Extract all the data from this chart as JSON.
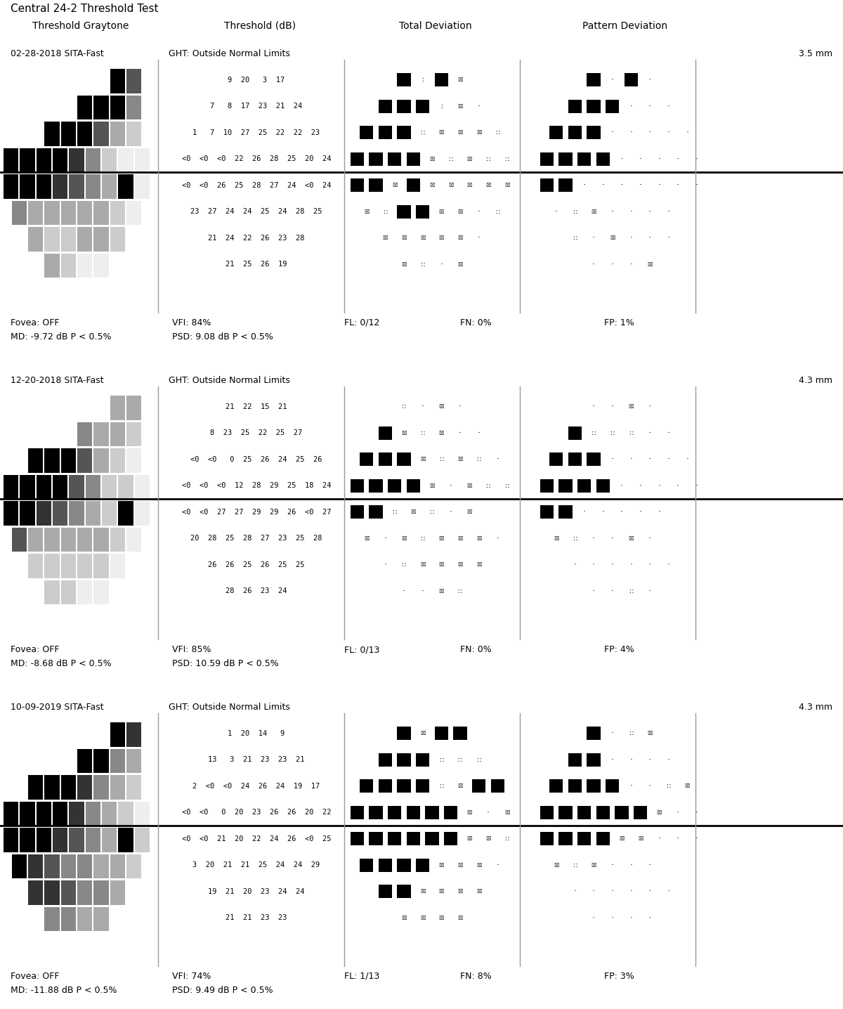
{
  "title": "Central 24-2 Threshold Test",
  "col_headers": [
    "Threshold Graytone",
    "Threshold (dB)",
    "Total Deviation",
    "Pattern Deviation"
  ],
  "panels": [
    {
      "date": "02-28-2018 SITA-Fast",
      "ght": "GHT: Outside Normal Limits",
      "mm": "3.5 mm",
      "fovea": "Fovea: OFF",
      "vfi": "VFI: 84%",
      "fl": "FL: 0/12",
      "fn": "FN: 0%",
      "fp": "FP: 1%",
      "md": "MD: -9.72 dB P < 0.5%",
      "psd": "PSD: 9.08 dB P < 0.5%",
      "threshold_rows_upper": [
        "9  20   3  17",
        "7   8  17  23  21  24",
        "1   7  10  27  25  22  22  23",
        "<0  <0  <0  22  26  28  25  20  24"
      ],
      "threshold_rows_lower": [
        "<0  <0  26  25  28  27  24  <0  24",
        "23  27  24  24  25  24  28  25",
        "21  24  22  26  23  28",
        "21  25  26  19"
      ]
    },
    {
      "date": "12-20-2018 SITA-Fast",
      "ght": "GHT: Outside Normal Limits",
      "mm": "4.3 mm",
      "fovea": "Fovea: OFF",
      "vfi": "VFI: 85%",
      "fl": "FL: 0/13",
      "fn": "FN: 0%",
      "fp": "FP: 4%",
      "md": "MD: -8.68 dB P < 0.5%",
      "psd": "PSD: 10.59 dB P < 0.5%",
      "threshold_rows_upper": [
        "21  22  15  21",
        "8  23  25  22  25  27",
        "<0  <0   0  25  26  24  25  26",
        "<0  <0  <0  12  28  29  25  18  24"
      ],
      "threshold_rows_lower": [
        "<0  <0  27  27  29  29  26  <0  27",
        "20  28  25  28  27  23  25  28",
        "26  26  25  26  25  25",
        "28  26  23  24"
      ]
    },
    {
      "date": "10-09-2019 SITA-Fast",
      "ght": "GHT: Outside Normal Limits",
      "mm": "4.3 mm",
      "fovea": "Fovea: OFF",
      "vfi": "VFI: 74%",
      "fl": "FL: 1/13",
      "fn": "FN: 8%",
      "fp": "FP: 3%",
      "md": "MD: -11.88 dB P < 0.5%",
      "psd": "PSD: 9.49 dB P < 0.5%",
      "threshold_rows_upper": [
        "1  20  14   9",
        "13   3  21  23  23  21",
        "2  <0  <0  24  26  24  19  17",
        "<0  <0   0  20  23  26  26  20  22"
      ],
      "threshold_rows_lower": [
        "<0  <0  21  20  22  24  26  <0  25",
        "3  20  21  21  25  24  24  29",
        "19  21  20  23  24  24",
        "21  21  23  23"
      ]
    }
  ]
}
